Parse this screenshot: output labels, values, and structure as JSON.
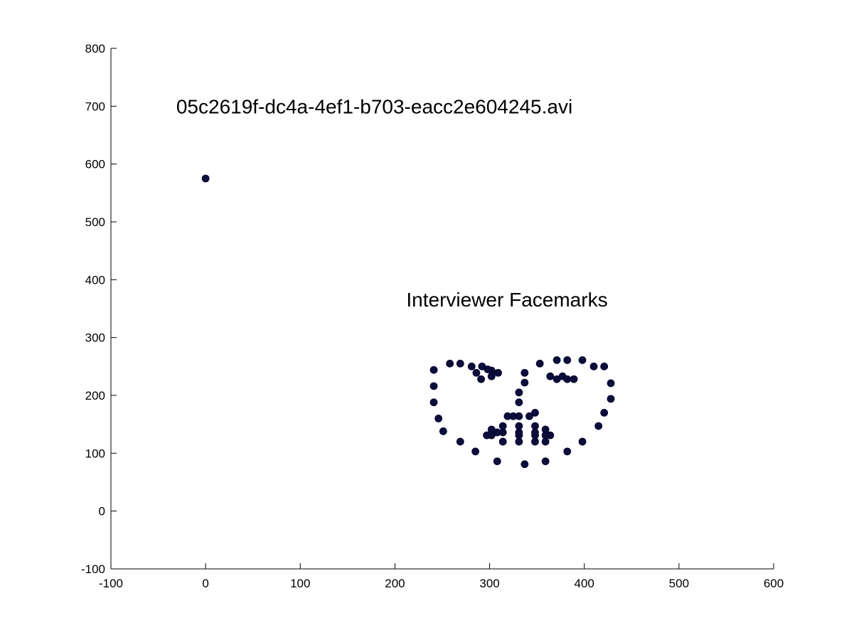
{
  "chart_data": {
    "type": "scatter",
    "xlim": [
      -100,
      600
    ],
    "ylim": [
      -100,
      800
    ],
    "x_ticks": [
      -100,
      0,
      100,
      200,
      300,
      400,
      500,
      600
    ],
    "y_ticks": [
      -100,
      0,
      100,
      200,
      300,
      400,
      500,
      600,
      700,
      800
    ],
    "grid": false,
    "box": false,
    "marker_color": "#0d0d3a",
    "annotations": [
      {
        "text": "05c2619f-dc4a-4ef1-b703-eacc2e604245.avi",
        "x": -31,
        "y": 700
      },
      {
        "text": "Interviewer Facemarks",
        "x": 212,
        "y": 366
      }
    ],
    "series": [
      {
        "points": [
          [
            0,
            575
          ],
          [
            241,
            244
          ],
          [
            241,
            216
          ],
          [
            241,
            188
          ],
          [
            246,
            160
          ],
          [
            251,
            138
          ],
          [
            269,
            120
          ],
          [
            285,
            103
          ],
          [
            308,
            86
          ],
          [
            337,
            81
          ],
          [
            359,
            86
          ],
          [
            382,
            103
          ],
          [
            398,
            120
          ],
          [
            415,
            147
          ],
          [
            421,
            170
          ],
          [
            428,
            194
          ],
          [
            428,
            221
          ],
          [
            421,
            250
          ],
          [
            258,
            255
          ],
          [
            269,
            255
          ],
          [
            281,
            250
          ],
          [
            292,
            250
          ],
          [
            302,
            243
          ],
          [
            286,
            239
          ],
          [
            291,
            228
          ],
          [
            302,
            233
          ],
          [
            309,
            239
          ],
          [
            353,
            255
          ],
          [
            371,
            261
          ],
          [
            382,
            261
          ],
          [
            398,
            261
          ],
          [
            410,
            250
          ],
          [
            364,
            233
          ],
          [
            371,
            228
          ],
          [
            377,
            233
          ],
          [
            382,
            228
          ],
          [
            389,
            228
          ],
          [
            337,
            239
          ],
          [
            337,
            222
          ],
          [
            331,
            205
          ],
          [
            331,
            188
          ],
          [
            319,
            164
          ],
          [
            325,
            164
          ],
          [
            331,
            164
          ],
          [
            342,
            164
          ],
          [
            348,
            170
          ],
          [
            297,
            131
          ],
          [
            302,
            141
          ],
          [
            308,
            136
          ],
          [
            314,
            147
          ],
          [
            331,
            147
          ],
          [
            348,
            147
          ],
          [
            359,
            141
          ],
          [
            364,
            131
          ],
          [
            302,
            131
          ],
          [
            314,
            136
          ],
          [
            331,
            131
          ],
          [
            348,
            131
          ],
          [
            359,
            131
          ],
          [
            314,
            120
          ],
          [
            331,
            120
          ],
          [
            348,
            120
          ],
          [
            359,
            120
          ],
          [
            331,
            136
          ],
          [
            348,
            136
          ],
          [
            298,
            245
          ]
        ]
      }
    ]
  }
}
